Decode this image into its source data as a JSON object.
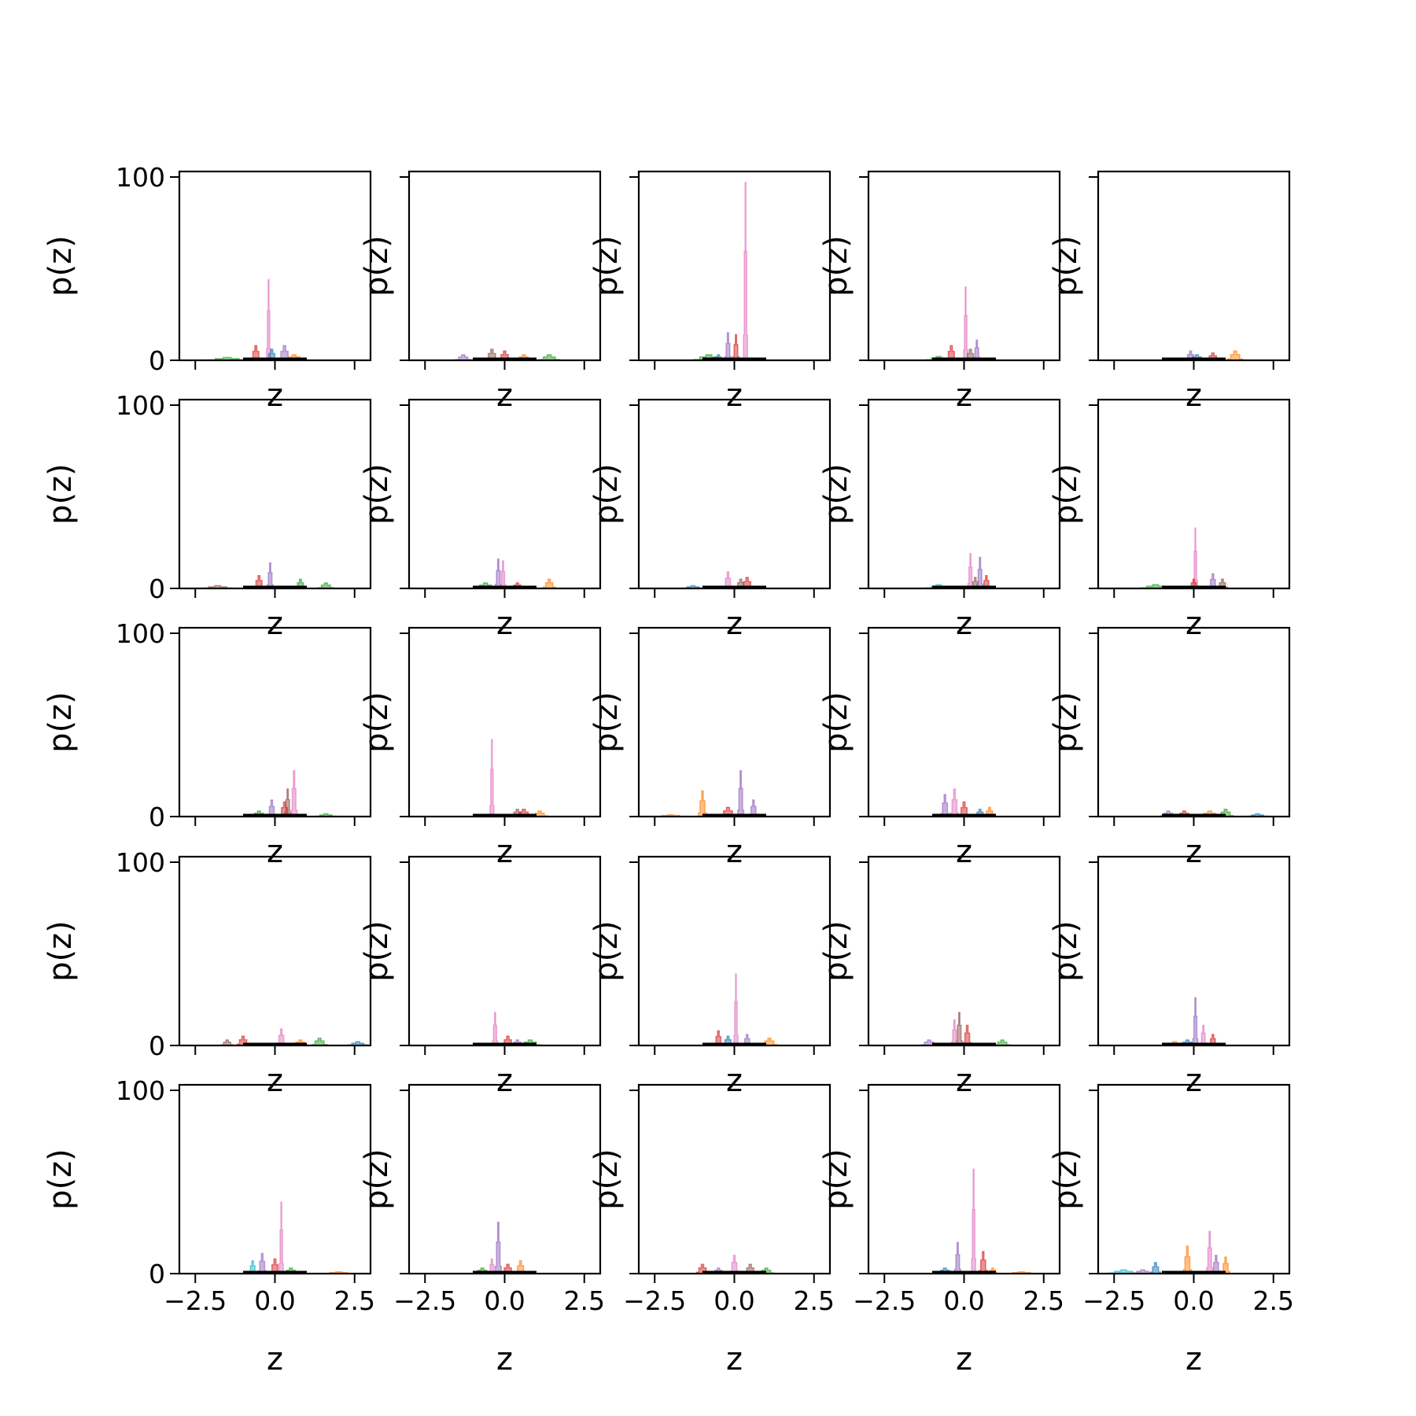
{
  "figure": {
    "rows": 5,
    "cols": 5,
    "xlabel": "z",
    "ylabel": "p(z)",
    "xlim": [
      -3.0,
      3.0
    ],
    "ylim": [
      0,
      103
    ],
    "xticks": [
      -2.5,
      0.0,
      2.5
    ],
    "xtick_labels": [
      "−2.5",
      "0.0",
      "2.5"
    ],
    "yticks": [
      0,
      100
    ],
    "ytick_labels": [
      "0",
      "100"
    ],
    "series_colors": [
      "#1f77b4",
      "#ff7f0e",
      "#2ca02c",
      "#d62728",
      "#9467bd",
      "#8c564b",
      "#e377c2",
      "#7f7f7f",
      "#bcbd22",
      "#17becf"
    ],
    "reference_color": "#000000"
  },
  "chart_data": {
    "type": "histogram-grid",
    "xlabel": "z",
    "ylabel": "p(z)",
    "xlim": [
      -3.0,
      3.0
    ],
    "ylim": [
      0,
      103
    ],
    "grid": false,
    "legend": "none",
    "panels": [
      {
        "row": 0,
        "col": 0,
        "peaks": [
          {
            "color": "pink",
            "center": -0.2,
            "width": 0.04,
            "height": 44
          },
          {
            "color": "red",
            "center": -0.6,
            "width": 0.1,
            "height": 8
          },
          {
            "color": "purple",
            "center": 0.3,
            "width": 0.12,
            "height": 8
          },
          {
            "color": "green",
            "center": -1.5,
            "width": 0.4,
            "height": 1.5
          },
          {
            "color": "orange",
            "center": 0.6,
            "width": 0.2,
            "height": 3
          },
          {
            "color": "blue",
            "center": -0.1,
            "width": 0.1,
            "height": 6
          }
        ]
      },
      {
        "row": 0,
        "col": 1,
        "peaks": [
          {
            "color": "purple",
            "center": -1.3,
            "width": 0.15,
            "height": 3
          },
          {
            "color": "brown",
            "center": -0.4,
            "width": 0.12,
            "height": 6
          },
          {
            "color": "red",
            "center": 0.0,
            "width": 0.12,
            "height": 5
          },
          {
            "color": "green",
            "center": 1.4,
            "width": 0.2,
            "height": 3
          },
          {
            "color": "orange",
            "center": 0.6,
            "width": 0.15,
            "height": 3
          }
        ]
      },
      {
        "row": 0,
        "col": 2,
        "peaks": [
          {
            "color": "pink",
            "center": 0.35,
            "width": 0.04,
            "height": 97
          },
          {
            "color": "purple",
            "center": -0.2,
            "width": 0.06,
            "height": 15
          },
          {
            "color": "red",
            "center": 0.05,
            "width": 0.06,
            "height": 14
          },
          {
            "color": "green",
            "center": -0.8,
            "width": 0.3,
            "height": 3
          },
          {
            "color": "blue",
            "center": -0.5,
            "width": 0.1,
            "height": 3
          }
        ]
      },
      {
        "row": 0,
        "col": 3,
        "peaks": [
          {
            "color": "pink",
            "center": 0.05,
            "width": 0.04,
            "height": 40
          },
          {
            "color": "purple",
            "center": 0.4,
            "width": 0.06,
            "height": 11
          },
          {
            "color": "red",
            "center": -0.4,
            "width": 0.1,
            "height": 8
          },
          {
            "color": "green",
            "center": -0.8,
            "width": 0.25,
            "height": 2
          },
          {
            "color": "brown",
            "center": 0.2,
            "width": 0.1,
            "height": 6
          }
        ]
      },
      {
        "row": 0,
        "col": 4,
        "peaks": [
          {
            "color": "orange",
            "center": 1.3,
            "width": 0.15,
            "height": 5
          },
          {
            "color": "purple",
            "center": -0.1,
            "width": 0.1,
            "height": 5
          },
          {
            "color": "red",
            "center": 0.6,
            "width": 0.12,
            "height": 4
          },
          {
            "color": "blue",
            "center": 0.1,
            "width": 0.15,
            "height": 3
          }
        ]
      },
      {
        "row": 1,
        "col": 0,
        "peaks": [
          {
            "color": "purple",
            "center": -0.15,
            "width": 0.06,
            "height": 14
          },
          {
            "color": "red",
            "center": -0.5,
            "width": 0.1,
            "height": 7
          },
          {
            "color": "green",
            "center": 0.8,
            "width": 0.1,
            "height": 5
          },
          {
            "color": "green",
            "center": 1.6,
            "width": 0.15,
            "height": 3
          },
          {
            "color": "brown",
            "center": -1.8,
            "width": 0.3,
            "height": 1.5
          }
        ]
      },
      {
        "row": 1,
        "col": 1,
        "peaks": [
          {
            "color": "purple",
            "center": -0.2,
            "width": 0.06,
            "height": 16
          },
          {
            "color": "pink",
            "center": -0.05,
            "width": 0.05,
            "height": 15
          },
          {
            "color": "orange",
            "center": 1.4,
            "width": 0.12,
            "height": 5
          },
          {
            "color": "green",
            "center": -0.6,
            "width": 0.2,
            "height": 3
          },
          {
            "color": "red",
            "center": 0.4,
            "width": 0.12,
            "height": 3
          }
        ]
      },
      {
        "row": 1,
        "col": 2,
        "peaks": [
          {
            "color": "pink",
            "center": -0.2,
            "width": 0.08,
            "height": 9
          },
          {
            "color": "red",
            "center": 0.4,
            "width": 0.12,
            "height": 6
          },
          {
            "color": "brown",
            "center": 0.2,
            "width": 0.1,
            "height": 5
          },
          {
            "color": "blue",
            "center": -1.3,
            "width": 0.2,
            "height": 1.5
          }
        ]
      },
      {
        "row": 1,
        "col": 3,
        "peaks": [
          {
            "color": "pink",
            "center": 0.2,
            "width": 0.05,
            "height": 19
          },
          {
            "color": "purple",
            "center": 0.5,
            "width": 0.06,
            "height": 17
          },
          {
            "color": "red",
            "center": 0.7,
            "width": 0.08,
            "height": 7
          },
          {
            "color": "brown",
            "center": 0.35,
            "width": 0.08,
            "height": 6
          },
          {
            "color": "cyan",
            "center": -0.8,
            "width": 0.25,
            "height": 2
          }
        ]
      },
      {
        "row": 1,
        "col": 4,
        "peaks": [
          {
            "color": "pink",
            "center": 0.05,
            "width": 0.04,
            "height": 33
          },
          {
            "color": "purple",
            "center": 0.6,
            "width": 0.08,
            "height": 8
          },
          {
            "color": "red",
            "center": 0.0,
            "width": 0.08,
            "height": 5
          },
          {
            "color": "green",
            "center": -1.2,
            "width": 0.3,
            "height": 2
          },
          {
            "color": "brown",
            "center": 0.9,
            "width": 0.1,
            "height": 5
          }
        ]
      },
      {
        "row": 2,
        "col": 0,
        "peaks": [
          {
            "color": "pink",
            "center": 0.6,
            "width": 0.06,
            "height": 25
          },
          {
            "color": "brown",
            "center": 0.4,
            "width": 0.06,
            "height": 15
          },
          {
            "color": "purple",
            "center": -0.1,
            "width": 0.08,
            "height": 9
          },
          {
            "color": "red",
            "center": 0.3,
            "width": 0.1,
            "height": 8
          },
          {
            "color": "green",
            "center": 1.6,
            "width": 0.2,
            "height": 1.5
          },
          {
            "color": "green",
            "center": -0.5,
            "width": 0.15,
            "height": 3
          }
        ]
      },
      {
        "row": 2,
        "col": 1,
        "peaks": [
          {
            "color": "pink",
            "center": -0.4,
            "width": 0.04,
            "height": 42
          },
          {
            "color": "brown",
            "center": 0.4,
            "width": 0.12,
            "height": 4
          },
          {
            "color": "red",
            "center": 0.6,
            "width": 0.15,
            "height": 4
          },
          {
            "color": "orange",
            "center": 1.1,
            "width": 0.15,
            "height": 3
          }
        ]
      },
      {
        "row": 2,
        "col": 2,
        "peaks": [
          {
            "color": "purple",
            "center": 0.2,
            "width": 0.06,
            "height": 25
          },
          {
            "color": "orange",
            "center": -1.0,
            "width": 0.08,
            "height": 14
          },
          {
            "color": "purple",
            "center": 0.6,
            "width": 0.08,
            "height": 9
          },
          {
            "color": "red",
            "center": -0.2,
            "width": 0.15,
            "height": 5
          },
          {
            "color": "orange",
            "center": -2.0,
            "width": 0.3,
            "height": 1
          }
        ]
      },
      {
        "row": 2,
        "col": 3,
        "peaks": [
          {
            "color": "pink",
            "center": -0.3,
            "width": 0.08,
            "height": 15
          },
          {
            "color": "purple",
            "center": -0.6,
            "width": 0.08,
            "height": 12
          },
          {
            "color": "red",
            "center": 0.0,
            "width": 0.1,
            "height": 8
          },
          {
            "color": "orange",
            "center": 0.8,
            "width": 0.1,
            "height": 5
          },
          {
            "color": "blue",
            "center": 0.5,
            "width": 0.1,
            "height": 4
          }
        ]
      },
      {
        "row": 2,
        "col": 4,
        "peaks": [
          {
            "color": "green",
            "center": 1.0,
            "width": 0.15,
            "height": 4
          },
          {
            "color": "red",
            "center": -0.3,
            "width": 0.15,
            "height": 3
          },
          {
            "color": "orange",
            "center": 0.5,
            "width": 0.2,
            "height": 3
          },
          {
            "color": "blue",
            "center": 2.0,
            "width": 0.2,
            "height": 1.5
          },
          {
            "color": "purple",
            "center": -0.8,
            "width": 0.15,
            "height": 3
          }
        ]
      },
      {
        "row": 3,
        "col": 0,
        "peaks": [
          {
            "color": "pink",
            "center": 0.2,
            "width": 0.08,
            "height": 9
          },
          {
            "color": "red",
            "center": -1.0,
            "width": 0.12,
            "height": 5
          },
          {
            "color": "green",
            "center": 1.4,
            "width": 0.15,
            "height": 4
          },
          {
            "color": "blue",
            "center": 2.6,
            "width": 0.2,
            "height": 2
          },
          {
            "color": "brown",
            "center": -1.5,
            "width": 0.12,
            "height": 3
          },
          {
            "color": "orange",
            "center": 0.8,
            "width": 0.15,
            "height": 3
          }
        ]
      },
      {
        "row": 3,
        "col": 1,
        "peaks": [
          {
            "color": "pink",
            "center": -0.3,
            "width": 0.05,
            "height": 18
          },
          {
            "color": "red",
            "center": 0.1,
            "width": 0.12,
            "height": 5
          },
          {
            "color": "green",
            "center": 0.8,
            "width": 0.2,
            "height": 3
          },
          {
            "color": "purple",
            "center": 0.4,
            "width": 0.12,
            "height": 3
          }
        ]
      },
      {
        "row": 3,
        "col": 2,
        "peaks": [
          {
            "color": "pink",
            "center": 0.05,
            "width": 0.04,
            "height": 39
          },
          {
            "color": "red",
            "center": -0.5,
            "width": 0.08,
            "height": 8
          },
          {
            "color": "purple",
            "center": 0.4,
            "width": 0.08,
            "height": 6
          },
          {
            "color": "orange",
            "center": 1.1,
            "width": 0.15,
            "height": 4
          },
          {
            "color": "blue",
            "center": -0.2,
            "width": 0.1,
            "height": 5
          }
        ]
      },
      {
        "row": 3,
        "col": 3,
        "peaks": [
          {
            "color": "brown",
            "center": -0.15,
            "width": 0.06,
            "height": 18
          },
          {
            "color": "pink",
            "center": -0.3,
            "width": 0.06,
            "height": 14
          },
          {
            "color": "red",
            "center": 0.1,
            "width": 0.08,
            "height": 11
          },
          {
            "color": "purple",
            "center": -1.1,
            "width": 0.15,
            "height": 3
          },
          {
            "color": "green",
            "center": 1.2,
            "width": 0.15,
            "height": 3
          }
        ]
      },
      {
        "row": 3,
        "col": 4,
        "peaks": [
          {
            "color": "purple",
            "center": 0.05,
            "width": 0.05,
            "height": 26
          },
          {
            "color": "pink",
            "center": 0.3,
            "width": 0.06,
            "height": 11
          },
          {
            "color": "red",
            "center": 0.6,
            "width": 0.08,
            "height": 6
          },
          {
            "color": "blue",
            "center": -0.2,
            "width": 0.15,
            "height": 3
          },
          {
            "color": "orange",
            "center": -0.6,
            "width": 0.2,
            "height": 2
          }
        ]
      },
      {
        "row": 4,
        "col": 0,
        "peaks": [
          {
            "color": "pink",
            "center": 0.2,
            "width": 0.04,
            "height": 39
          },
          {
            "color": "purple",
            "center": -0.4,
            "width": 0.08,
            "height": 11
          },
          {
            "color": "cyan",
            "center": -0.7,
            "width": 0.08,
            "height": 7
          },
          {
            "color": "red",
            "center": 0.0,
            "width": 0.1,
            "height": 8
          },
          {
            "color": "orange",
            "center": 2.0,
            "width": 0.3,
            "height": 1
          },
          {
            "color": "green",
            "center": 0.5,
            "width": 0.15,
            "height": 3
          }
        ]
      },
      {
        "row": 4,
        "col": 1,
        "peaks": [
          {
            "color": "purple",
            "center": -0.2,
            "width": 0.06,
            "height": 28
          },
          {
            "color": "pink",
            "center": -0.4,
            "width": 0.06,
            "height": 8
          },
          {
            "color": "orange",
            "center": 0.5,
            "width": 0.1,
            "height": 7
          },
          {
            "color": "red",
            "center": 0.1,
            "width": 0.12,
            "height": 5
          },
          {
            "color": "green",
            "center": -0.7,
            "width": 0.15,
            "height": 3
          }
        ]
      },
      {
        "row": 4,
        "col": 2,
        "peaks": [
          {
            "color": "red",
            "center": -1.0,
            "width": 0.12,
            "height": 5
          },
          {
            "color": "pink",
            "center": 0.0,
            "width": 0.08,
            "height": 10
          },
          {
            "color": "brown",
            "center": 0.5,
            "width": 0.12,
            "height": 5
          },
          {
            "color": "green",
            "center": 1.0,
            "width": 0.15,
            "height": 3
          },
          {
            "color": "purple",
            "center": -0.5,
            "width": 0.12,
            "height": 3
          }
        ]
      },
      {
        "row": 4,
        "col": 3,
        "peaks": [
          {
            "color": "pink",
            "center": 0.3,
            "width": 0.04,
            "height": 57
          },
          {
            "color": "purple",
            "center": -0.2,
            "width": 0.06,
            "height": 17
          },
          {
            "color": "red",
            "center": 0.6,
            "width": 0.08,
            "height": 12
          },
          {
            "color": "orange",
            "center": 0.9,
            "width": 0.1,
            "height": 3
          },
          {
            "color": "blue",
            "center": -0.6,
            "width": 0.15,
            "height": 3
          },
          {
            "color": "orange",
            "center": 1.8,
            "width": 0.3,
            "height": 1
          }
        ]
      },
      {
        "row": 4,
        "col": 4,
        "peaks": [
          {
            "color": "pink",
            "center": 0.5,
            "width": 0.06,
            "height": 23
          },
          {
            "color": "orange",
            "center": -0.2,
            "width": 0.08,
            "height": 15
          },
          {
            "color": "orange",
            "center": 1.0,
            "width": 0.08,
            "height": 9
          },
          {
            "color": "purple",
            "center": 0.7,
            "width": 0.08,
            "height": 10
          },
          {
            "color": "blue",
            "center": -1.2,
            "width": 0.1,
            "height": 6
          },
          {
            "color": "cyan",
            "center": -2.2,
            "width": 0.3,
            "height": 2
          },
          {
            "color": "purple",
            "center": -1.6,
            "width": 0.2,
            "height": 2
          }
        ]
      }
    ]
  }
}
